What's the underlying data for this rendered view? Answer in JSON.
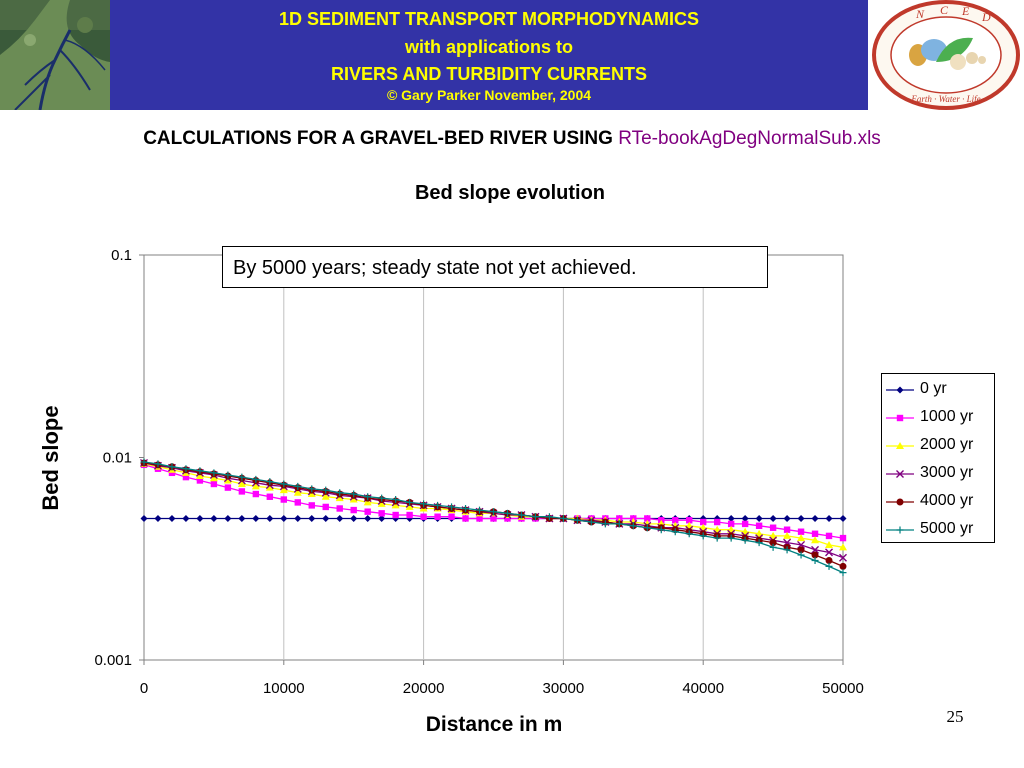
{
  "header": {
    "title_line1": "1D SEDIMENT TRANSPORT MORPHODYNAMICS",
    "title_line2": "with applications to",
    "title_line3": "RIVERS AND TURBIDITY CURRENTS",
    "copyright": "© Gary Parker November, 2004",
    "banner_color": "#3333a6",
    "title_color": "#ffff00"
  },
  "logo": {
    "letters": [
      "N",
      "C",
      "E",
      "D"
    ],
    "motto": "Earth · Water · Life"
  },
  "subtitle": {
    "text": "CALCULATIONS FOR A GRAVEL-BED RIVER USING",
    "file": "RTe-bookAgDegNormalSub.xls"
  },
  "annotation": "By 5000 years; steady state not yet achieved.",
  "page_number": "25",
  "chart_data": {
    "type": "line",
    "title": "Bed slope evolution",
    "xlabel": "Distance in m",
    "ylabel": "Bed slope",
    "xlim": [
      0,
      50000
    ],
    "ylim": [
      0.001,
      0.1
    ],
    "yscale": "log",
    "grid": "vertical",
    "legend_position": "right",
    "x_ticks": [
      "0",
      "10000",
      "20000",
      "30000",
      "40000",
      "50000"
    ],
    "y_ticks": [
      "0.001",
      "0.01",
      "0.1"
    ],
    "x": [
      0,
      1000,
      2000,
      3000,
      4000,
      5000,
      6000,
      7000,
      8000,
      9000,
      10000,
      11000,
      12000,
      13000,
      14000,
      15000,
      16000,
      17000,
      18000,
      19000,
      20000,
      21000,
      22000,
      23000,
      24000,
      25000,
      26000,
      27000,
      28000,
      29000,
      30000,
      31000,
      32000,
      33000,
      34000,
      35000,
      36000,
      37000,
      38000,
      39000,
      40000,
      41000,
      42000,
      43000,
      44000,
      45000,
      46000,
      47000,
      48000,
      49000,
      50000
    ],
    "series": [
      {
        "name": "0 yr",
        "color": "#000080",
        "marker": "diamond",
        "values": [
          0.005,
          0.005,
          0.005,
          0.005,
          0.005,
          0.005,
          0.005,
          0.005,
          0.005,
          0.005,
          0.005,
          0.005,
          0.005,
          0.005,
          0.005,
          0.005,
          0.005,
          0.005,
          0.005,
          0.005,
          0.005,
          0.005,
          0.005,
          0.005,
          0.005,
          0.005,
          0.005,
          0.005,
          0.005,
          0.005,
          0.005,
          0.005,
          0.005,
          0.005,
          0.005,
          0.005,
          0.005,
          0.005,
          0.005,
          0.005,
          0.005,
          0.005,
          0.005,
          0.005,
          0.005,
          0.005,
          0.005,
          0.005,
          0.005,
          0.005,
          0.005
        ]
      },
      {
        "name": "1000 yr",
        "color": "#ff00ff",
        "marker": "square",
        "values": [
          0.0092,
          0.0088,
          0.0084,
          0.008,
          0.0077,
          0.0074,
          0.0071,
          0.0068,
          0.0066,
          0.0064,
          0.0062,
          0.006,
          0.0058,
          0.0057,
          0.0056,
          0.0055,
          0.0054,
          0.0053,
          0.0052,
          0.0052,
          0.0051,
          0.0051,
          0.0051,
          0.005,
          0.005,
          0.005,
          0.005,
          0.005,
          0.005,
          0.005,
          0.005,
          0.005,
          0.005,
          0.005,
          0.005,
          0.005,
          0.005,
          0.0049,
          0.0049,
          0.0049,
          0.0048,
          0.0048,
          0.0047,
          0.0047,
          0.0046,
          0.0045,
          0.0044,
          0.0043,
          0.0042,
          0.0041,
          0.004
        ]
      },
      {
        "name": "2000 yr",
        "color": "#ffff00",
        "marker": "triangle",
        "values": [
          0.0093,
          0.009,
          0.0087,
          0.0084,
          0.0081,
          0.0079,
          0.0077,
          0.0074,
          0.0072,
          0.0071,
          0.0069,
          0.0067,
          0.0066,
          0.0064,
          0.0063,
          0.0062,
          0.006,
          0.0059,
          0.0058,
          0.0057,
          0.0056,
          0.0056,
          0.0055,
          0.0054,
          0.0053,
          0.0053,
          0.0052,
          0.0051,
          0.0051,
          0.005,
          0.005,
          0.005,
          0.0049,
          0.0049,
          0.0048,
          0.0048,
          0.0047,
          0.0047,
          0.0046,
          0.0046,
          0.0045,
          0.0044,
          0.0044,
          0.0043,
          0.0042,
          0.0041,
          0.0041,
          0.004,
          0.0039,
          0.0037,
          0.0036
        ]
      },
      {
        "name": "3000 yr",
        "color": "#800080",
        "marker": "x",
        "values": [
          0.0094,
          0.0091,
          0.0089,
          0.0086,
          0.0084,
          0.0082,
          0.0079,
          0.0077,
          0.0075,
          0.0073,
          0.0072,
          0.007,
          0.0068,
          0.0067,
          0.0065,
          0.0064,
          0.0063,
          0.0061,
          0.006,
          0.0059,
          0.0058,
          0.0057,
          0.0056,
          0.0055,
          0.0054,
          0.0053,
          0.0052,
          0.0052,
          0.0051,
          0.005,
          0.005,
          0.0049,
          0.0049,
          0.0048,
          0.0047,
          0.0047,
          0.0046,
          0.0045,
          0.0045,
          0.0044,
          0.0043,
          0.0042,
          0.0042,
          0.0041,
          0.004,
          0.0039,
          0.0038,
          0.0037,
          0.0035,
          0.0034,
          0.0032
        ]
      },
      {
        "name": "4000 yr",
        "color": "#800000",
        "marker": "circle",
        "values": [
          0.0094,
          0.0092,
          0.009,
          0.0087,
          0.0085,
          0.0083,
          0.0081,
          0.0079,
          0.0077,
          0.0075,
          0.0073,
          0.0071,
          0.0069,
          0.0068,
          0.0066,
          0.0065,
          0.0063,
          0.0062,
          0.0061,
          0.006,
          0.0058,
          0.0057,
          0.0056,
          0.0055,
          0.0054,
          0.0054,
          0.0053,
          0.0052,
          0.0051,
          0.005,
          0.005,
          0.0049,
          0.0048,
          0.0048,
          0.0047,
          0.0046,
          0.0045,
          0.0045,
          0.0044,
          0.0043,
          0.0042,
          0.0041,
          0.0041,
          0.004,
          0.0039,
          0.0038,
          0.0036,
          0.0035,
          0.0033,
          0.0031,
          0.0029
        ]
      },
      {
        "name": "5000 yr",
        "color": "#008080",
        "marker": "plus",
        "values": [
          0.0095,
          0.0093,
          0.009,
          0.0088,
          0.0086,
          0.0084,
          0.0082,
          0.008,
          0.0078,
          0.0076,
          0.0074,
          0.0072,
          0.007,
          0.0069,
          0.0067,
          0.0066,
          0.0064,
          0.0063,
          0.0062,
          0.006,
          0.0059,
          0.0058,
          0.0057,
          0.0056,
          0.0055,
          0.0054,
          0.0053,
          0.0052,
          0.0051,
          0.0051,
          0.005,
          0.0049,
          0.0048,
          0.0047,
          0.0047,
          0.0046,
          0.0045,
          0.0044,
          0.0043,
          0.0042,
          0.0041,
          0.004,
          0.004,
          0.0039,
          0.0038,
          0.0036,
          0.0035,
          0.0033,
          0.0031,
          0.0029,
          0.0027
        ]
      }
    ]
  }
}
